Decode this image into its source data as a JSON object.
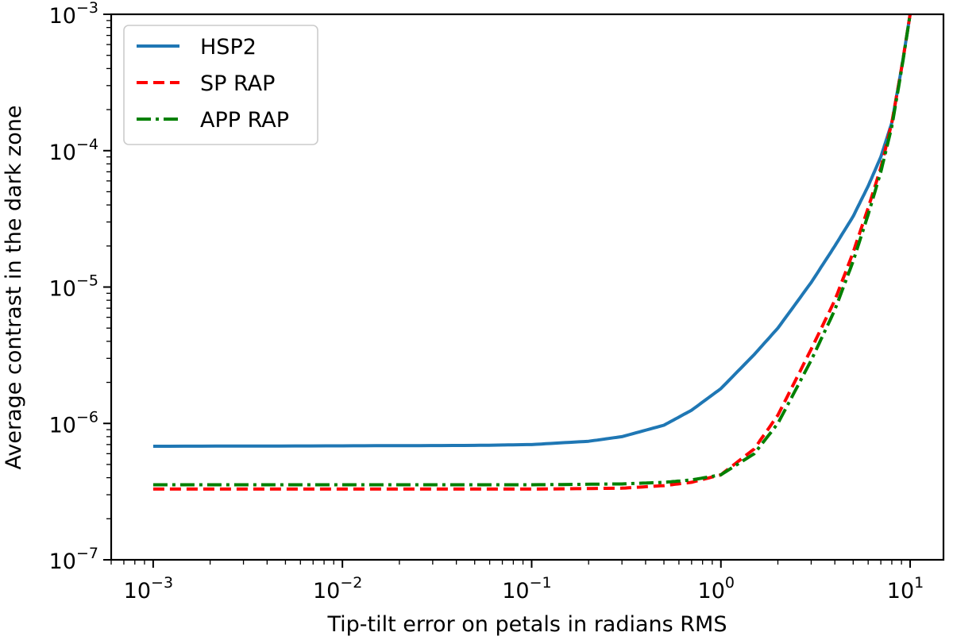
{
  "chart_data": {
    "type": "line",
    "xlabel": "Tip-tilt error on petals in radians RMS",
    "ylabel": "Average contrast in the dark zone",
    "xscale": "log",
    "yscale": "log",
    "xlim": [
      0.0006,
      15
    ],
    "ylim": [
      1e-07,
      0.001
    ],
    "x_ticks": [
      {
        "base": "10",
        "exp": "−3",
        "value": 0.001
      },
      {
        "base": "10",
        "exp": "−2",
        "value": 0.01
      },
      {
        "base": "10",
        "exp": "−1",
        "value": 0.1
      },
      {
        "base": "10",
        "exp": "0",
        "value": 1
      },
      {
        "base": "10",
        "exp": "1",
        "value": 10
      }
    ],
    "y_ticks": [
      {
        "base": "10",
        "exp": "−7",
        "value": 1e-07
      },
      {
        "base": "10",
        "exp": "−6",
        "value": 1e-06
      },
      {
        "base": "10",
        "exp": "−5",
        "value": 1e-05
      },
      {
        "base": "10",
        "exp": "−4",
        "value": 0.0001
      },
      {
        "base": "10",
        "exp": "−3",
        "value": 0.001
      }
    ],
    "grid": false,
    "legend_position": "top-left",
    "series": [
      {
        "name": "HSP2",
        "color": "#1f77b4",
        "style": "solid",
        "x": [
          0.001,
          0.01,
          0.05,
          0.1,
          0.2,
          0.3,
          0.5,
          0.7,
          1.0,
          1.5,
          2.0,
          3.0,
          4.0,
          5.0,
          6.0,
          7.0,
          8.0,
          9.0,
          10.0
        ],
        "y": [
          6.8e-07,
          6.85e-07,
          6.9e-07,
          7e-07,
          7.4e-07,
          8e-07,
          9.7e-07,
          1.25e-06,
          1.8e-06,
          3.2e-06,
          5e-06,
          1.08e-05,
          2e-05,
          3.3e-05,
          5.5e-05,
          9e-05,
          0.00016,
          0.0004,
          0.001
        ]
      },
      {
        "name": "SP RAP",
        "color": "#ff0000",
        "style": "dashed",
        "x": [
          0.001,
          0.01,
          0.1,
          0.3,
          0.5,
          0.7,
          1.0,
          1.5,
          2.0,
          3.0,
          4.0,
          5.0,
          6.0,
          7.0,
          8.0,
          9.0,
          10.0
        ],
        "y": [
          3.3e-07,
          3.3e-07,
          3.3e-07,
          3.35e-07,
          3.5e-07,
          3.7e-07,
          4.2e-07,
          6.5e-07,
          1.15e-06,
          3.5e-06,
          8e-06,
          1.8e-05,
          3.8e-05,
          7.5e-05,
          0.00016,
          0.0004,
          0.001
        ]
      },
      {
        "name": "APP RAP",
        "color": "#008000",
        "style": "dashdot",
        "x": [
          0.001,
          0.01,
          0.1,
          0.3,
          0.5,
          0.7,
          1.0,
          1.5,
          2.0,
          3.0,
          4.0,
          5.0,
          6.0,
          7.0,
          8.0,
          9.0,
          10.0
        ],
        "y": [
          3.55e-07,
          3.55e-07,
          3.55e-07,
          3.6e-07,
          3.7e-07,
          3.85e-07,
          4.2e-07,
          6e-07,
          1e-06,
          2.9e-06,
          6.8e-06,
          1.55e-05,
          3.4e-05,
          7e-05,
          0.00015,
          0.00039,
          0.001
        ]
      }
    ]
  }
}
